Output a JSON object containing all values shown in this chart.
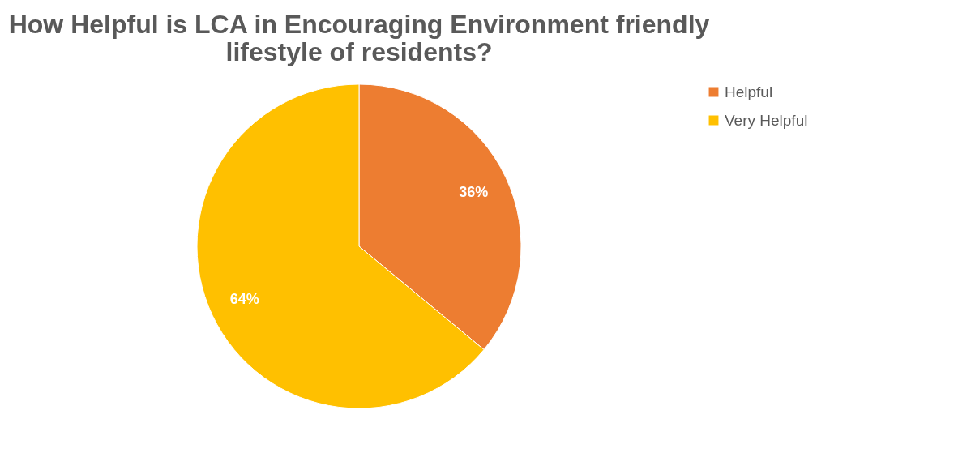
{
  "chart_data": {
    "type": "pie",
    "title": "How Helpful is LCA in Encouraging Environment friendly lifestyle of residents?",
    "categories": [
      "Helpful",
      "Very Helpful"
    ],
    "values": [
      36,
      64
    ],
    "colors": [
      "#ed7d31",
      "#ffc000"
    ],
    "value_labels": [
      "36%",
      "64%"
    ],
    "legend": "right"
  }
}
